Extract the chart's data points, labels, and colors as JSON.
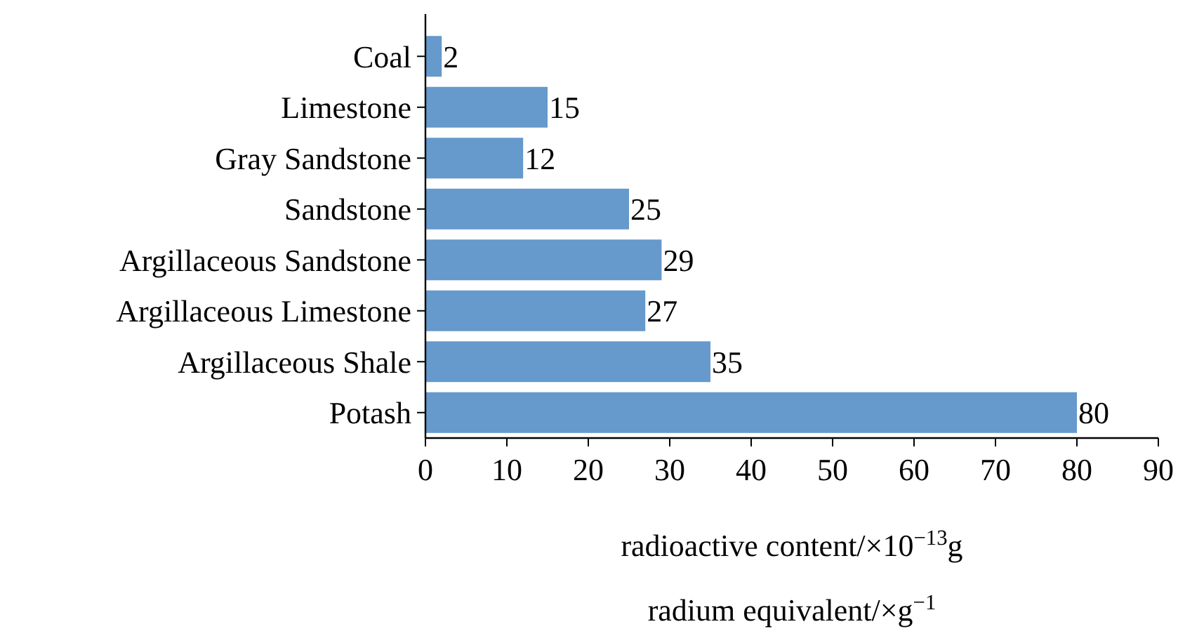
{
  "chart_data": {
    "type": "bar",
    "orientation": "horizontal",
    "categories": [
      "Coal",
      "Limestone",
      "Gray Sandstone",
      "Sandstone",
      "Argillaceous Sandstone",
      "Argillaceous Limestone",
      "Argillaceous Shale",
      "Potash"
    ],
    "values": [
      2,
      15,
      12,
      25,
      29,
      27,
      35,
      80
    ],
    "color": "#6699cc",
    "xlim": [
      0,
      90
    ],
    "xticks": [
      0,
      10,
      20,
      30,
      40,
      50,
      60,
      70,
      80,
      90
    ],
    "xlabel": "radioactive content/×10$^{−13}$g\nradium equivalent/×g$^{−1}$",
    "data_labels": true
  }
}
